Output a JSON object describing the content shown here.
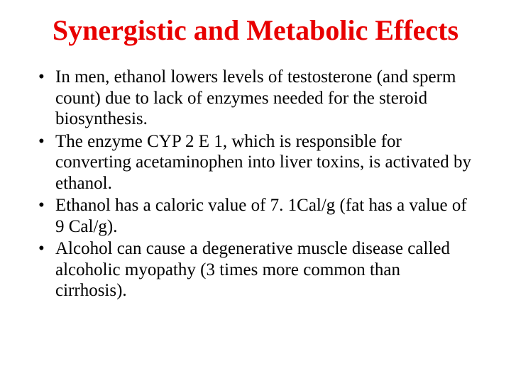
{
  "slide": {
    "title": "Synergistic and Metabolic Effects",
    "title_color": "#e80000",
    "title_fontsize": 40,
    "title_fontweight": "bold",
    "body_fontsize": 25,
    "body_color": "#000000",
    "background_color": "#ffffff",
    "font_family": "Times New Roman",
    "bullets": [
      "In men, ethanol lowers levels of testosterone (and sperm count) due to lack of enzymes needed for the steroid biosynthesis.",
      "The enzyme CYP 2 E 1, which is responsible for converting acetaminophen into liver toxins, is activated by ethanol.",
      "Ethanol has a caloric value of 7. 1Cal/g (fat has a value of 9 Cal/g).",
      "Alcohol can cause a degenerative muscle disease called alcoholic myopathy (3 times more common than cirrhosis)."
    ]
  }
}
